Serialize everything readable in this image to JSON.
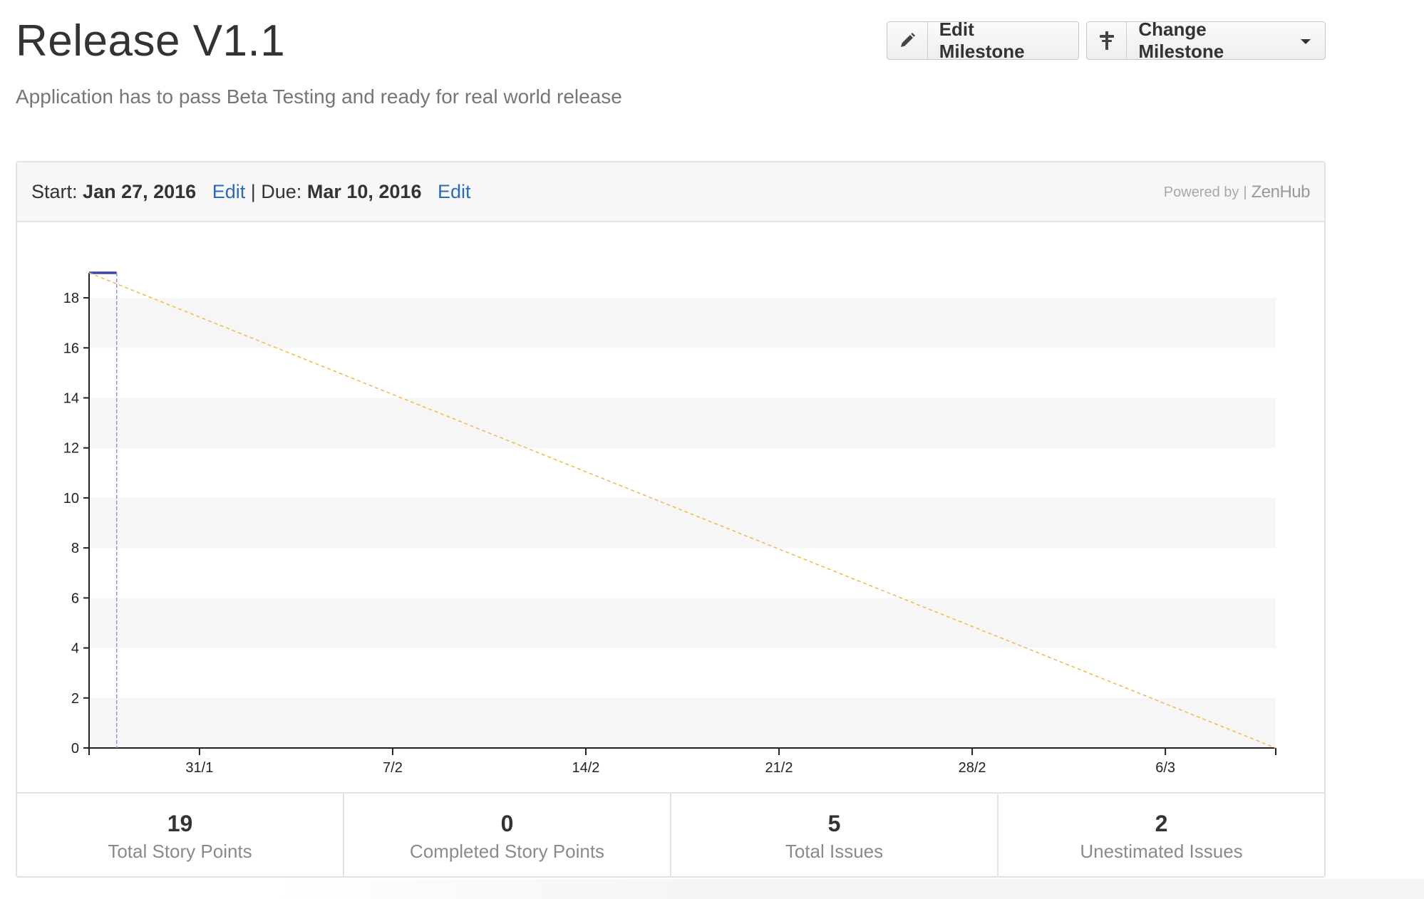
{
  "milestone": {
    "title": "Release V1.1",
    "description": "Application has to pass Beta Testing and ready for real world release"
  },
  "toolbar": {
    "edit_label": "Edit Milestone",
    "change_label": "Change Milestone",
    "edit_icon": "pencil-icon",
    "change_icon": "signpost-icon"
  },
  "panel": {
    "start_label": "Start:",
    "start_date": "Jan 27, 2016",
    "edit_link": "Edit",
    "separator": "|",
    "due_label": "Due:",
    "due_date": "Mar 10, 2016",
    "powered_by": "Powered by",
    "powered_sep": "|",
    "brand": "ZenHub"
  },
  "colors": {
    "link": "#2b6cb8",
    "actual_line": "#3a46a8",
    "today_marker": "#8f8ff2",
    "ideal_line": "#f4b84a",
    "band": "#f6f6f6"
  },
  "chart_data": {
    "type": "line",
    "title": "",
    "xlabel": "",
    "ylabel": "",
    "ylim": [
      0,
      19
    ],
    "yticks": [
      0,
      2,
      4,
      6,
      8,
      10,
      12,
      14,
      16,
      18
    ],
    "xlim": [
      "2016-01-27",
      "2016-03-10"
    ],
    "xticks": [
      {
        "date": "2016-01-31",
        "label": "31/1"
      },
      {
        "date": "2016-02-07",
        "label": "7/2"
      },
      {
        "date": "2016-02-14",
        "label": "14/2"
      },
      {
        "date": "2016-02-21",
        "label": "21/2"
      },
      {
        "date": "2016-02-28",
        "label": "28/2"
      },
      {
        "date": "2016-03-06",
        "label": "6/3"
      }
    ],
    "series": [
      {
        "style": "solid",
        "color": "#3a46a8",
        "points": [
          [
            "2016-01-27",
            19
          ],
          [
            "2016-01-28",
            19
          ]
        ]
      },
      {
        "style": "dashed",
        "color": "#f4b84a",
        "points": [
          [
            "2016-01-27",
            19
          ],
          [
            "2016-03-10",
            0
          ]
        ]
      }
    ],
    "markers": [
      {
        "style": "dashed-vertical",
        "date": "2016-01-28",
        "color": "#8f8ff2"
      }
    ],
    "grid": "alternating-horizontal-bands"
  },
  "stats": [
    {
      "value": "19",
      "label": "Total Story Points"
    },
    {
      "value": "0",
      "label": "Completed Story Points"
    },
    {
      "value": "5",
      "label": "Total Issues"
    },
    {
      "value": "2",
      "label": "Unestimated Issues"
    }
  ]
}
